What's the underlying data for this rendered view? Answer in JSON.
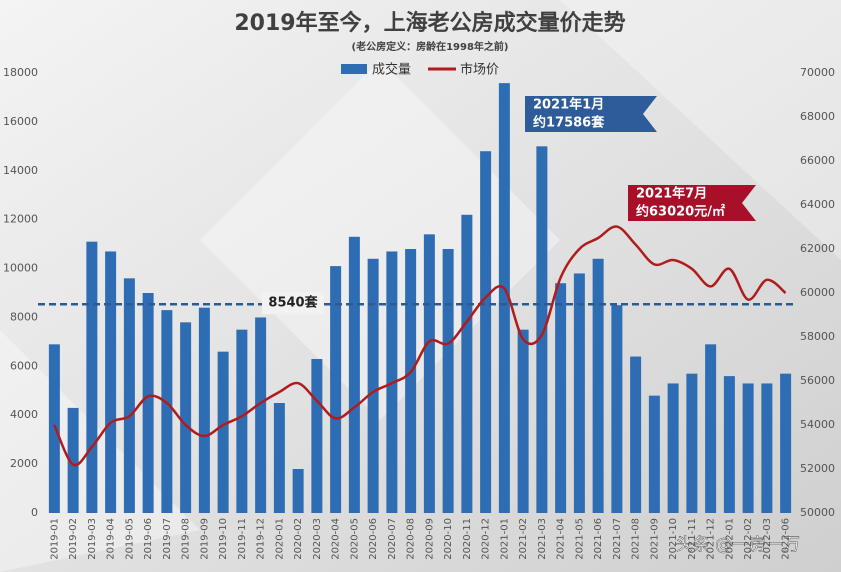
{
  "chart_data": {
    "type": "bar-line",
    "title": "2019年至今，上海老公房成交量价走势",
    "subtitle": "(老公房定义：房龄在1998年之前)",
    "categories": [
      "2019-01",
      "2019-02",
      "2019-03",
      "2019-04",
      "2019-05",
      "2019-06",
      "2019-07",
      "2019-08",
      "2019-09",
      "2019-10",
      "2019-11",
      "2019-12",
      "2020-01",
      "2020-02",
      "2020-03",
      "2020-04",
      "2020-05",
      "2020-06",
      "2020-07",
      "2020-08",
      "2020-09",
      "2020-10",
      "2020-11",
      "2020-12",
      "2021-01",
      "2021-02",
      "2021-03",
      "2021-04",
      "2021-05",
      "2021-06",
      "2021-07",
      "2021-08",
      "2021-09",
      "2021-10",
      "2021-11",
      "2021-12",
      "2022-01",
      "2022-02",
      "2022-03",
      "2022-06"
    ],
    "series": [
      {
        "name": "成交量",
        "type": "bar",
        "color": "#2e6db4",
        "values": [
          6900,
          4300,
          11100,
          10700,
          9600,
          9000,
          8300,
          7800,
          8400,
          6600,
          7500,
          8000,
          4500,
          1800,
          6300,
          10100,
          11300,
          10400,
          10700,
          10800,
          11400,
          10800,
          12200,
          14800,
          17586,
          7500,
          15000,
          9400,
          9800,
          10400,
          8500,
          6400,
          4800,
          5300,
          5700,
          6900,
          5600,
          5300,
          5300,
          5700
        ]
      },
      {
        "name": "市场价",
        "type": "line",
        "color": "#b01c1c",
        "axis": "y2",
        "values": [
          54000,
          52200,
          53000,
          54100,
          54400,
          55300,
          55000,
          54000,
          53500,
          54000,
          54400,
          55000,
          55500,
          55900,
          55100,
          54300,
          54800,
          55500,
          55900,
          56400,
          57800,
          57700,
          58700,
          59800,
          60200,
          57900,
          58100,
          60700,
          62000,
          62500,
          63020,
          62200,
          61300,
          61500,
          61100,
          60300,
          61100,
          59700,
          60600,
          60000
        ]
      }
    ],
    "ylim": [
      0,
      18000
    ],
    "yticks": [
      0,
      2000,
      4000,
      6000,
      8000,
      10000,
      12000,
      14000,
      16000,
      18000
    ],
    "y2lim": [
      50000,
      70000
    ],
    "y2ticks": [
      50000,
      52000,
      54000,
      56000,
      58000,
      60000,
      62000,
      64000,
      66000,
      68000,
      70000
    ],
    "reference_line": {
      "value": 8540,
      "label": "8540套",
      "color": "#2e5b8f"
    },
    "annotations": [
      {
        "lines": [
          "2021年1月",
          "约17586套"
        ],
        "color": "#2e5b9a"
      },
      {
        "lines": [
          "2021年7月",
          "约63020元/㎡"
        ],
        "color": "#a8102a"
      }
    ],
    "watermark": "头条 @一房一万",
    "legend": "top"
  }
}
